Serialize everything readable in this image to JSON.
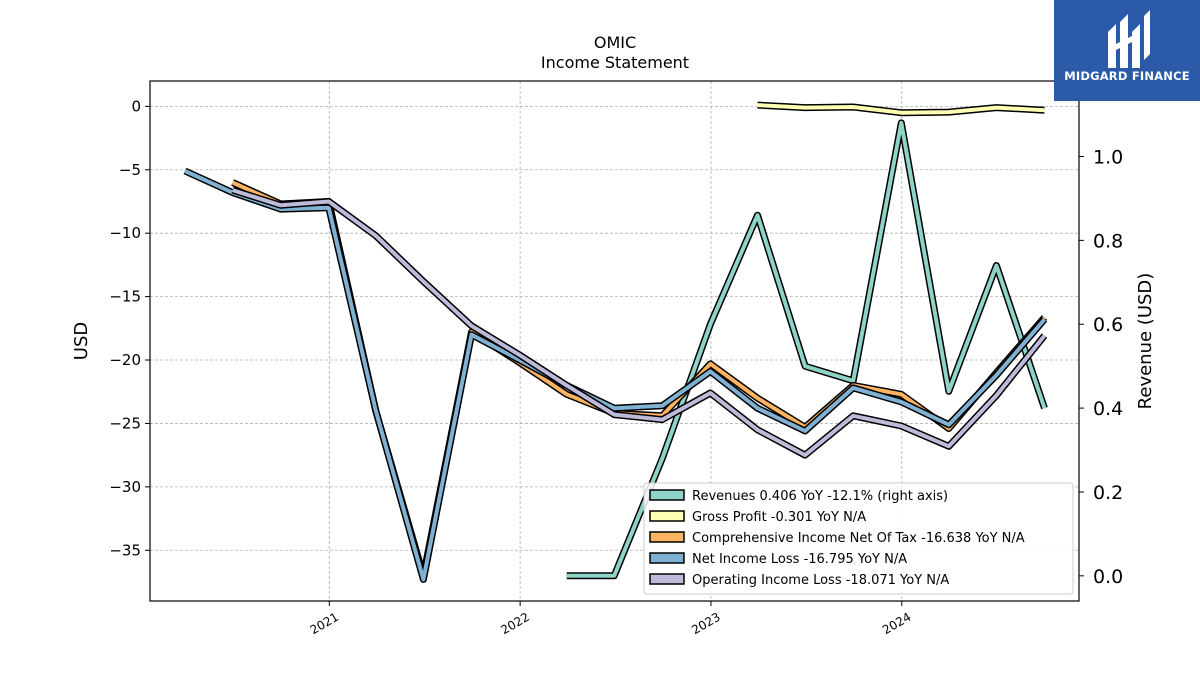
{
  "chart_data": {
    "type": "line",
    "title": "OMIC",
    "subtitle": "Income Statement",
    "ylabel_left": "USD",
    "ylabel_right": "Revenue (USD)",
    "x_ticks": [
      "2021",
      "2022",
      "2023",
      "2024"
    ],
    "y_left_ticks": [
      0,
      -5,
      -10,
      -15,
      -20,
      -25,
      -30,
      -35
    ],
    "y_right_ticks": [
      "0.0",
      "0.2",
      "0.4",
      "0.6",
      "0.8",
      "1.0"
    ],
    "y_left_range": [
      -39,
      2
    ],
    "y_right_range": [
      -0.06,
      1.18
    ],
    "x_range": [
      "2020-01-24",
      "2024-12-05"
    ],
    "grid": true,
    "legend_position": "bottom-right",
    "series": [
      {
        "name": "Revenues",
        "legend": "Revenues  0.406 YoY -12.1% (right axis)",
        "axis": "right",
        "color": "#8dd3c7",
        "points": [
          [
            "2022-03-31",
            0.0
          ],
          [
            "2022-06-30",
            0.0
          ],
          [
            "2022-09-30",
            0.28
          ],
          [
            "2022-12-31",
            0.6
          ],
          [
            "2023-03-31",
            0.86
          ],
          [
            "2023-06-30",
            0.5
          ],
          [
            "2023-09-30",
            0.465
          ],
          [
            "2023-12-31",
            1.08
          ],
          [
            "2024-03-31",
            0.44
          ],
          [
            "2024-06-30",
            0.74
          ],
          [
            "2024-09-30",
            0.4
          ]
        ]
      },
      {
        "name": "Gross Profit",
        "legend": "Gross Profit  -0.301 YoY N/A",
        "axis": "left",
        "color": "#ffffb3",
        "points": [
          [
            "2023-03-31",
            0.1
          ],
          [
            "2023-06-30",
            -0.1
          ],
          [
            "2023-09-30",
            -0.05
          ],
          [
            "2023-12-31",
            -0.5
          ],
          [
            "2024-03-31",
            -0.45
          ],
          [
            "2024-06-30",
            -0.1
          ],
          [
            "2024-09-30",
            -0.301
          ]
        ]
      },
      {
        "name": "Comprehensive Income Net Of Tax",
        "legend": "Comprehensive Income Net Of Tax  -16.638 YoY N/A",
        "axis": "left",
        "color": "#fdb462",
        "points": [
          [
            "2020-06-30",
            -6.0
          ],
          [
            "2020-09-30",
            -7.7
          ],
          [
            "2020-12-31",
            -7.5
          ],
          [
            "2021-03-31",
            -24.0
          ],
          [
            "2021-06-30",
            -37.0
          ],
          [
            "2021-09-30",
            -17.8
          ],
          [
            "2021-12-31",
            -20.2
          ],
          [
            "2022-03-31",
            -22.7
          ],
          [
            "2022-06-30",
            -24.2
          ],
          [
            "2022-09-30",
            -24.4
          ],
          [
            "2022-12-31",
            -20.3
          ],
          [
            "2023-03-31",
            -23.0
          ],
          [
            "2023-06-30",
            -25.3
          ],
          [
            "2023-09-30",
            -22.0
          ],
          [
            "2023-12-31",
            -22.7
          ],
          [
            "2024-03-31",
            -25.4
          ],
          [
            "2024-06-30",
            -21.0
          ],
          [
            "2024-09-30",
            -16.638
          ]
        ]
      },
      {
        "name": "Net Income Loss",
        "legend": "Net Income Loss  -16.795 YoY N/A",
        "axis": "left",
        "color": "#80b1d3",
        "points": [
          [
            "2020-03-31",
            -5.1
          ],
          [
            "2020-06-30",
            -6.8
          ],
          [
            "2020-09-30",
            -8.1
          ],
          [
            "2020-12-31",
            -8.0
          ],
          [
            "2021-03-31",
            -24.0
          ],
          [
            "2021-06-30",
            -37.3
          ],
          [
            "2021-09-30",
            -18.0
          ],
          [
            "2021-12-31",
            -20.0
          ],
          [
            "2022-03-31",
            -22.0
          ],
          [
            "2022-06-30",
            -23.8
          ],
          [
            "2022-09-30",
            -23.6
          ],
          [
            "2022-12-31",
            -20.9
          ],
          [
            "2023-03-31",
            -23.8
          ],
          [
            "2023-06-30",
            -25.6
          ],
          [
            "2023-09-30",
            -22.2
          ],
          [
            "2023-12-31",
            -23.3
          ],
          [
            "2024-03-31",
            -25.1
          ],
          [
            "2024-06-30",
            -21.2
          ],
          [
            "2024-09-30",
            -16.795
          ]
        ]
      },
      {
        "name": "Operating Income Loss",
        "legend": "Operating Income Loss  -18.071 YoY N/A",
        "axis": "left",
        "color": "#bebada",
        "points": [
          [
            "2020-06-30",
            -6.6
          ],
          [
            "2020-09-30",
            -7.8
          ],
          [
            "2020-12-31",
            -7.5
          ],
          [
            "2021-03-31",
            -10.2
          ],
          [
            "2021-06-30",
            -13.8
          ],
          [
            "2021-09-30",
            -17.3
          ],
          [
            "2021-12-31",
            -19.6
          ],
          [
            "2022-03-31",
            -22.0
          ],
          [
            "2022-06-30",
            -24.3
          ],
          [
            "2022-09-30",
            -24.7
          ],
          [
            "2022-12-31",
            -22.6
          ],
          [
            "2023-03-31",
            -25.5
          ],
          [
            "2023-06-30",
            -27.5
          ],
          [
            "2023-09-30",
            -24.4
          ],
          [
            "2023-12-31",
            -25.2
          ],
          [
            "2024-03-31",
            -26.8
          ],
          [
            "2024-06-30",
            -22.8
          ],
          [
            "2024-09-30",
            -18.071
          ]
        ]
      }
    ]
  },
  "logo": {
    "text": "MIDGARD FINANCE"
  }
}
